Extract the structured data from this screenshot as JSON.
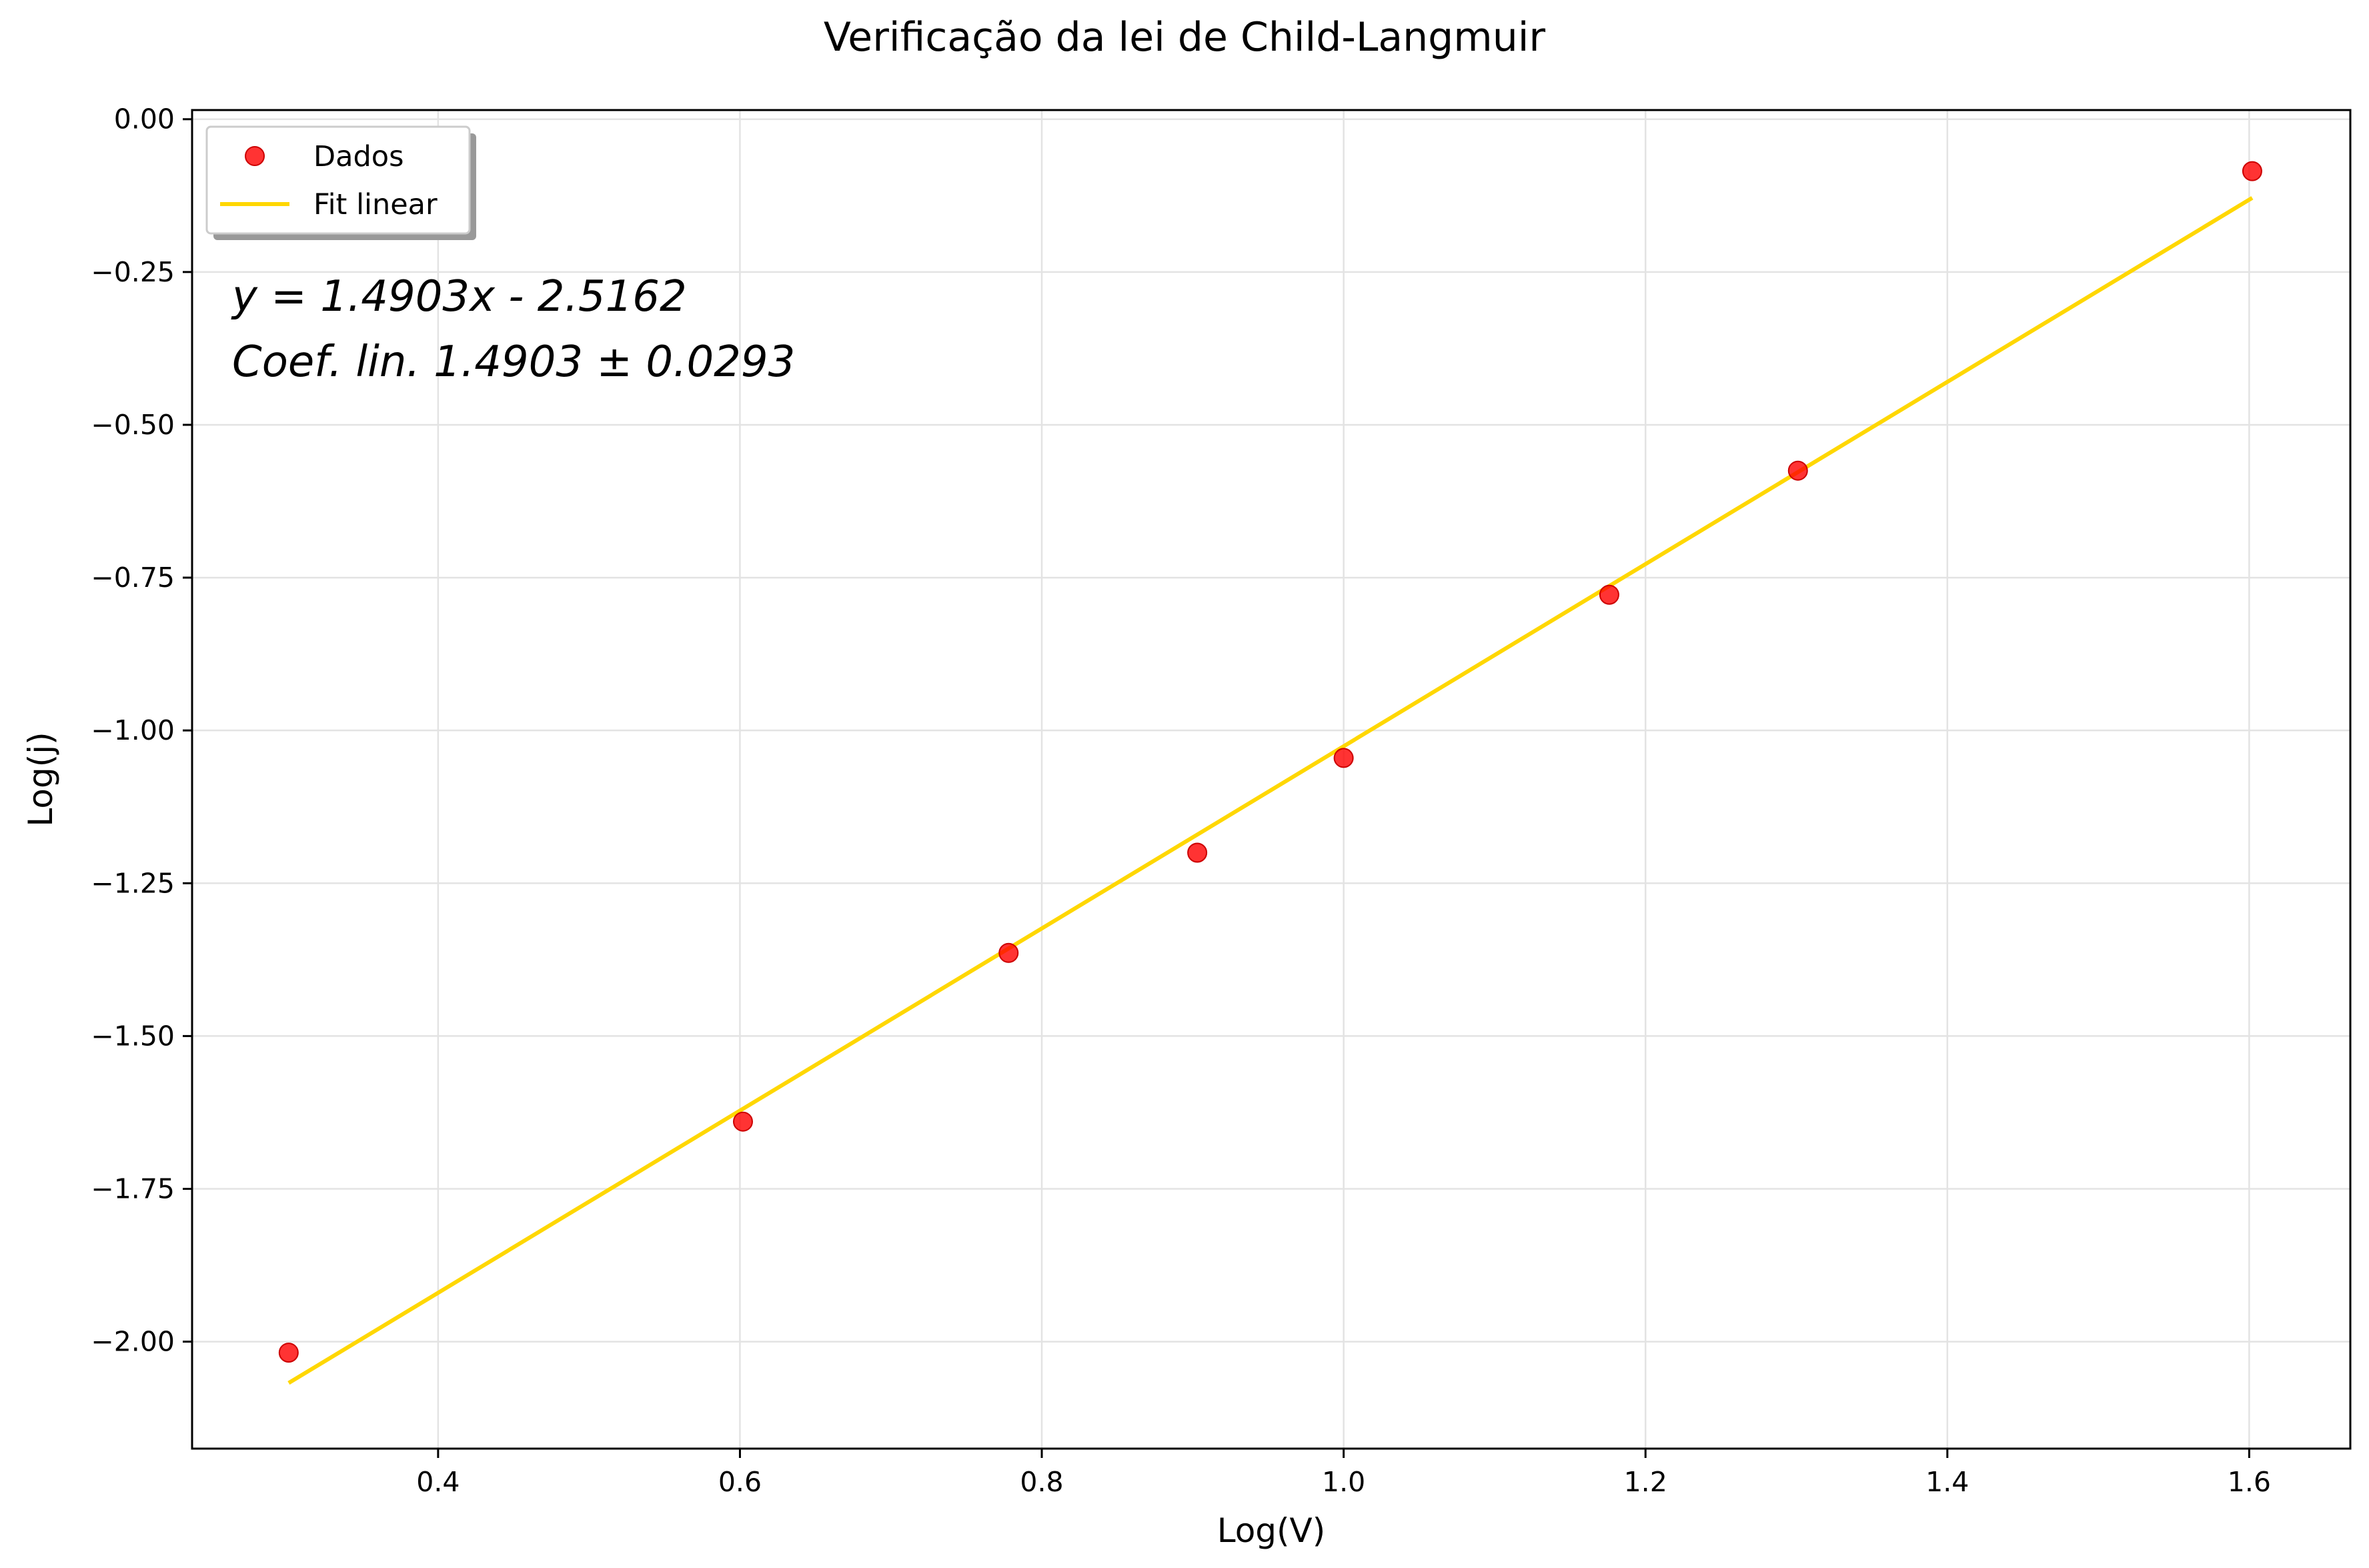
{
  "chart_data": {
    "type": "scatter",
    "title": "Verificação da lei de Child-Langmuir",
    "xlabel": "Log(V)",
    "ylabel": "Log(j)",
    "xlim": [
      0.237,
      1.667
    ],
    "ylim": [
      -2.175,
      0.015
    ],
    "xticks": [
      0.4,
      0.6,
      0.8,
      1.0,
      1.2,
      1.4,
      1.6
    ],
    "xtick_labels": [
      "0.4",
      "0.6",
      "0.8",
      "1.0",
      "1.2",
      "1.4",
      "1.6"
    ],
    "yticks": [
      0.0,
      -0.25,
      -0.5,
      -0.75,
      -1.0,
      -1.25,
      -1.5,
      -1.75,
      -2.0
    ],
    "ytick_labels": [
      "0.00",
      "−0.25",
      "−0.50",
      "−0.75",
      "−1.00",
      "−1.25",
      "−1.50",
      "−1.75",
      "−2.00"
    ],
    "grid": true,
    "legend_position": "top-left",
    "series": [
      {
        "name": "Dados",
        "kind": "scatter",
        "color": "#ff0000",
        "x": [
          0.301,
          0.602,
          0.778,
          0.903,
          1.0,
          1.176,
          1.301,
          1.602
        ],
        "y": [
          -2.018,
          -1.64,
          -1.364,
          -1.2,
          -1.045,
          -0.778,
          -0.575,
          -0.085
        ]
      },
      {
        "name": "Fit linear",
        "kind": "line",
        "color": "#ffd700",
        "slope": 1.4903,
        "intercept": -2.5162,
        "x_range": [
          0.301,
          1.602
        ]
      }
    ],
    "annotations": [
      "y = 1.4903x - 2.5162",
      "Coef. lin. 1.4903 ± 0.0293"
    ]
  }
}
